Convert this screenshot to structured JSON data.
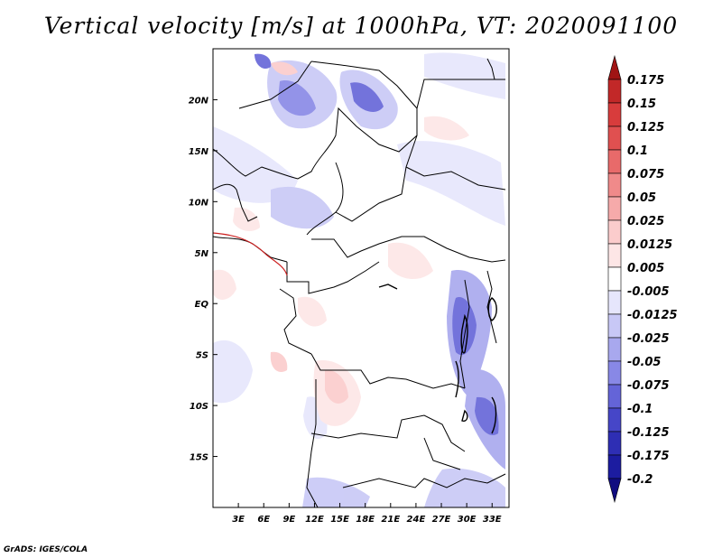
{
  "title": "Vertical velocity [m/s] at 1000hPa, VT: 2020091100",
  "credit": "GrADS: IGES/COLA",
  "map": {
    "lon_range": [
      0,
      35
    ],
    "lat_range": [
      -20,
      25
    ],
    "lat_ticks": [
      {
        "value": 20,
        "label": "20N"
      },
      {
        "value": 15,
        "label": "15N"
      },
      {
        "value": 10,
        "label": "10N"
      },
      {
        "value": 5,
        "label": "5N"
      },
      {
        "value": 0,
        "label": "EQ"
      },
      {
        "value": -5,
        "label": "5S"
      },
      {
        "value": -10,
        "label": "10S"
      },
      {
        "value": -15,
        "label": "15S"
      }
    ],
    "lon_ticks": [
      {
        "value": 3,
        "label": "3E"
      },
      {
        "value": 6,
        "label": "6E"
      },
      {
        "value": 9,
        "label": "9E"
      },
      {
        "value": 12,
        "label": "12E"
      },
      {
        "value": 15,
        "label": "15E"
      },
      {
        "value": 18,
        "label": "18E"
      },
      {
        "value": 21,
        "label": "21E"
      },
      {
        "value": 24,
        "label": "24E"
      },
      {
        "value": 27,
        "label": "27E"
      },
      {
        "value": 30,
        "label": "30E"
      },
      {
        "value": 33,
        "label": "33E"
      }
    ]
  },
  "colorbar": {
    "labels": [
      "0.175",
      "0.15",
      "0.125",
      "0.1",
      "0.075",
      "0.05",
      "0.025",
      "0.0125",
      "0.005",
      "-0.005",
      "-0.0125",
      "-0.025",
      "-0.05",
      "-0.075",
      "-0.1",
      "-0.125",
      "-0.175",
      "-0.2"
    ],
    "colors": [
      "#a01414",
      "#c22828",
      "#d83c3c",
      "#e05050",
      "#e86a6a",
      "#f08a8a",
      "#f6aaaa",
      "#fbcccc",
      "#fde6e6",
      "#ffffff",
      "#e6e6fc",
      "#c8c8f6",
      "#a8a8ee",
      "#8888e6",
      "#6464d8",
      "#4646c8",
      "#2e2eb4",
      "#1c1ca0",
      "#100c80"
    ]
  }
}
